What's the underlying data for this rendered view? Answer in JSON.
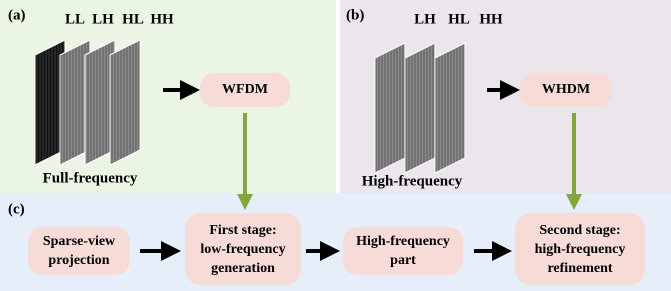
{
  "panels": {
    "a": {
      "label": "(a)",
      "bands": [
        "LL",
        "LH",
        "HL",
        "HH"
      ],
      "module": "WFDM",
      "caption": "Full-frequency"
    },
    "b": {
      "label": "(b)",
      "bands": [
        "LH",
        "HL",
        "HH"
      ],
      "module": "WHDM",
      "caption": "High-frequency"
    },
    "c": {
      "label": "(c)",
      "boxes": [
        {
          "lines": [
            "Sparse-view",
            "projection"
          ]
        },
        {
          "lines": [
            "First stage:",
            "low-frequency",
            "generation"
          ]
        },
        {
          "lines": [
            "High-frequency",
            "part"
          ]
        },
        {
          "lines": [
            "Second stage:",
            "high-frequency",
            "refinement"
          ]
        }
      ]
    }
  }
}
